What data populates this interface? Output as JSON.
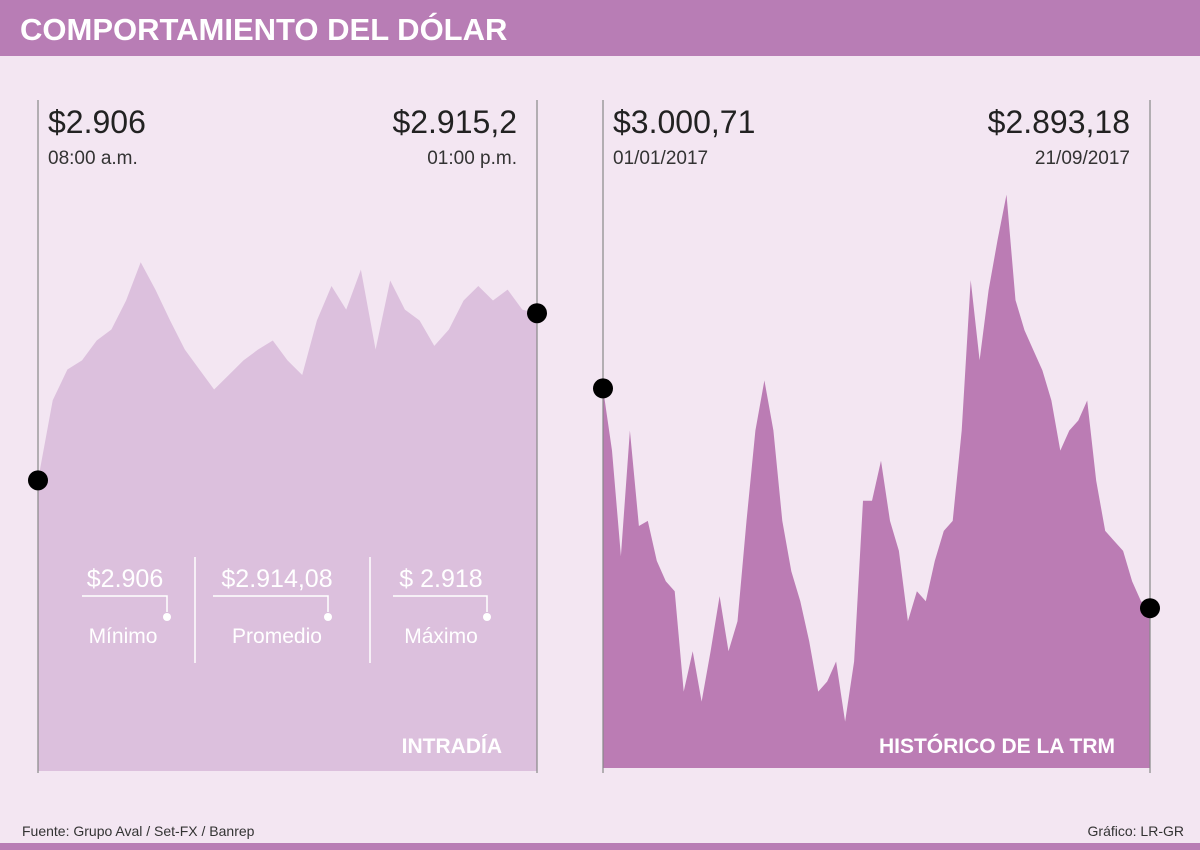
{
  "header": {
    "title": "COMPORTAMIENTO DEL DÓLAR"
  },
  "footer": {
    "source": "Fuente: Grupo Aval / Set-FX / Banrep",
    "credit": "Gráfico: LR-GR"
  },
  "chart_data": [
    {
      "type": "area",
      "label": "INTRADÍA",
      "color": "#dcc0dd",
      "start": {
        "value_label": "$2.906",
        "time": "08:00 a.m."
      },
      "end": {
        "value_label": "$2.915,2",
        "time": "01:00 p.m."
      },
      "stats": [
        {
          "value": "$2.906",
          "label": "Mínimo"
        },
        {
          "value": "$2.914,08",
          "label": "Promedio"
        },
        {
          "value": "$ 2.918",
          "label": "Máximo"
        }
      ],
      "ylim": [
        2890,
        2920
      ],
      "values": [
        2906,
        2910.4,
        2912.1,
        2912.6,
        2913.7,
        2914.3,
        2915.9,
        2918,
        2916.5,
        2914.8,
        2913.2,
        2912.1,
        2911,
        2911.8,
        2912.6,
        2913.2,
        2913.7,
        2912.6,
        2911.8,
        2914.8,
        2916.7,
        2915.4,
        2917.6,
        2913.2,
        2917,
        2915.4,
        2914.8,
        2913.4,
        2914.3,
        2915.9,
        2916.7,
        2915.9,
        2916.5,
        2915.4,
        2915.2
      ]
    },
    {
      "type": "area",
      "label": "HISTÓRICO DE LA TRM",
      "color": "#bb7cb4",
      "start": {
        "value_label": "$3.000,71",
        "time": "01/01/2017"
      },
      "end": {
        "value_label": "$2.893,18",
        "time": "21/09/2017"
      },
      "ylim": [
        2815,
        3110
      ],
      "values": [
        3000.71,
        2970.3,
        2918.7,
        2980.1,
        2933.4,
        2935.9,
        2916.3,
        2906.4,
        2901.5,
        2852.4,
        2872.1,
        2847.5,
        2872.1,
        2899.1,
        2872.1,
        2886.8,
        2935.9,
        2980.1,
        3004.6,
        2980.1,
        2935.9,
        2911.3,
        2896.6,
        2877,
        2852.4,
        2857.3,
        2867.1,
        2837.7,
        2867.1,
        2945.7,
        2945.7,
        2965.3,
        2935.9,
        2921.2,
        2886.8,
        2901.5,
        2896.6,
        2916.3,
        2931,
        2935.9,
        2980.1,
        3053.7,
        3014.5,
        3048.8,
        3073.4,
        3095.5,
        3043.9,
        3029.2,
        3019.4,
        3009.5,
        2994.8,
        2970.3,
        2980.1,
        2985,
        2994.8,
        2955.5,
        2931,
        2926.1,
        2921.2,
        2906.4,
        2896.6,
        2893.18
      ]
    }
  ]
}
